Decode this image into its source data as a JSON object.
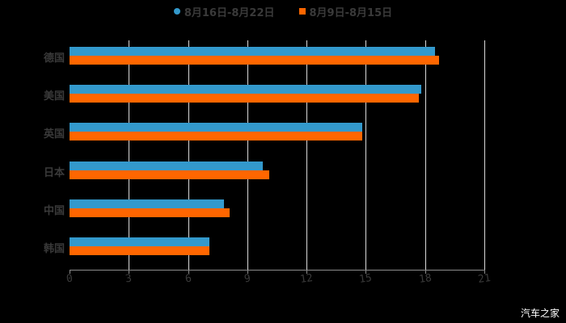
{
  "chart_data": {
    "type": "bar",
    "orientation": "horizontal",
    "title": "",
    "xlabel": "",
    "ylabel": "",
    "categories": [
      "德国",
      "美国",
      "英国",
      "日本",
      "中国",
      "韩国"
    ],
    "series": [
      {
        "name": "8月16日-8月22日",
        "color": "#3399cc",
        "values": [
          18.5,
          17.8,
          14.8,
          9.8,
          7.8,
          7.1
        ]
      },
      {
        "name": "8月9日-8月15日",
        "color": "#ff6600",
        "values": [
          18.7,
          17.7,
          14.8,
          10.1,
          8.1,
          7.1
        ]
      }
    ],
    "xlim": [
      0,
      21
    ],
    "xticks": [
      "0",
      "3",
      "6",
      "9",
      "12",
      "15",
      "18",
      "21"
    ],
    "grid": true,
    "legend_position": "top"
  },
  "legend": {
    "series1": "8月16日-8月22日",
    "series2": "8月9日-8月15日"
  },
  "watermark": "汽车之家"
}
